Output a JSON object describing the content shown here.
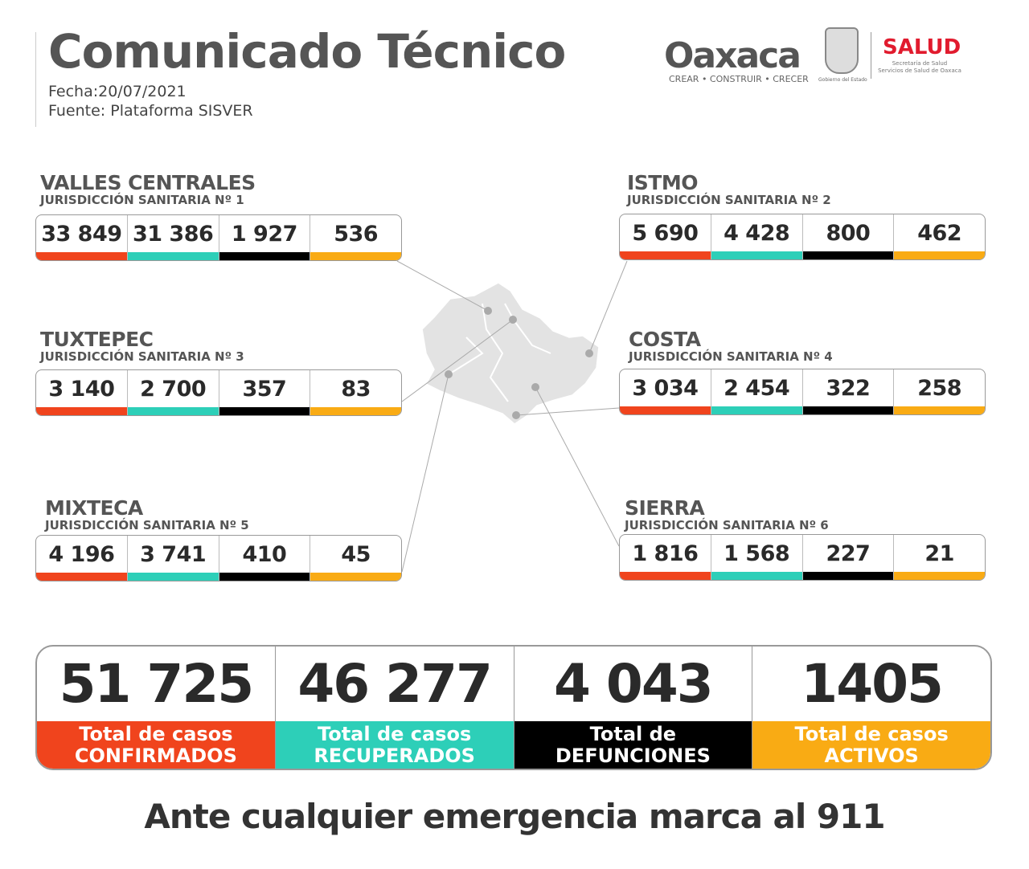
{
  "header": {
    "title": "Comunicado Técnico",
    "date": "Fecha:20/07/2021",
    "source": "Fuente: Plataforma SISVER"
  },
  "logos": {
    "oaxaca": "Oaxaca",
    "oaxaca_tagline": "CREAR • CONSTRUIR • CRECER",
    "gobierno": "Gobierno del Estado",
    "salud": "SALUD",
    "salud_sub1": "Secretaría de Salud",
    "salud_sub2": "Servicios de Salud de Oaxaca"
  },
  "colors": {
    "confirmados": "#f0441d",
    "recuperados": "#2dcfb8",
    "defunciones": "#000000",
    "activos": "#f9ab14",
    "map": "#e3e3e3"
  },
  "regions": [
    {
      "name": "VALLES CENTRALES",
      "jurisdiccion": "JURISDICCIÓN SANITARIA Nº 1",
      "values": [
        "33 849",
        "31 386",
        "1 927",
        "536"
      ]
    },
    {
      "name": "ISTMO",
      "jurisdiccion": "JURISDICCIÓN SANITARIA Nº 2",
      "values": [
        "5 690",
        "4 428",
        "800",
        "462"
      ]
    },
    {
      "name": "TUXTEPEC",
      "jurisdiccion": "JURISDICCIÓN SANITARIA Nº 3",
      "values": [
        "3 140",
        "2 700",
        "357",
        "83"
      ]
    },
    {
      "name": "COSTA",
      "jurisdiccion": "JURISDICCIÓN SANITARIA Nº 4",
      "values": [
        "3 034",
        "2 454",
        "322",
        "258"
      ]
    },
    {
      "name": "MIXTECA",
      "jurisdiccion": "JURISDICCIÓN SANITARIA Nº 5",
      "values": [
        "4 196",
        "3 741",
        "410",
        "45"
      ]
    },
    {
      "name": "SIERRA",
      "jurisdiccion": "JURISDICCIÓN SANITARIA Nº 6",
      "values": [
        "1 816",
        "1 568",
        "227",
        "21"
      ]
    }
  ],
  "totals": [
    {
      "value": "51 725",
      "label1": "Total de casos",
      "label2": "CONFIRMADOS"
    },
    {
      "value": "46 277",
      "label1": "Total de casos",
      "label2": "RECUPERADOS"
    },
    {
      "value": "4 043",
      "label1": "Total de",
      "label2": "DEFUNCIONES"
    },
    {
      "value": "1405",
      "label1": "Total de casos",
      "label2": "ACTIVOS"
    }
  ],
  "footer": "Ante cualquier emergencia marca al 911"
}
